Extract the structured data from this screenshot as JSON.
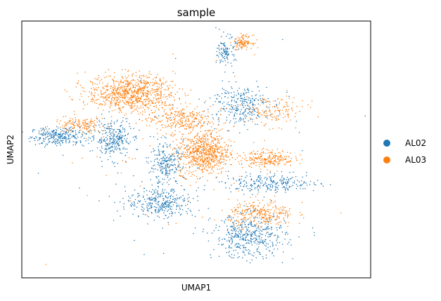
{
  "chart_data": {
    "type": "scatter",
    "title": "sample",
    "xlabel": "UMAP1",
    "ylabel": "UMAP2",
    "x_ticks": false,
    "y_ticks": false,
    "grid": false,
    "legend_position": "right",
    "series": [
      {
        "name": "AL02",
        "color": "#1f77b4",
        "approx_point_count": 10500,
        "regions": [
          {
            "name": "left-arm",
            "center": [
              -8.5,
              1.2
            ],
            "spread": [
              1.6,
              0.55
            ],
            "weight": 0.12
          },
          {
            "name": "left-center",
            "center": [
              -5.0,
              1.0
            ],
            "spread": [
              1.0,
              1.1
            ],
            "weight": 0.12
          },
          {
            "name": "central-bridge",
            "center": [
              -1.5,
              -0.9
            ],
            "spread": [
              0.9,
              1.2
            ],
            "weight": 0.1
          },
          {
            "name": "lower-center",
            "center": [
              -1.8,
              -3.6
            ],
            "spread": [
              1.9,
              0.9
            ],
            "weight": 0.14
          },
          {
            "name": "bottom-right-cluster",
            "center": [
              4.0,
              -6.0
            ],
            "spread": [
              2.0,
              1.3
            ],
            "weight": 0.2
          },
          {
            "name": "right-band",
            "center": [
              5.5,
              -2.2
            ],
            "spread": [
              2.6,
              0.55
            ],
            "weight": 0.11
          },
          {
            "name": "upper-right",
            "center": [
              3.3,
              3.5
            ],
            "spread": [
              1.6,
              1.2
            ],
            "weight": 0.12
          },
          {
            "name": "top-spike",
            "center": [
              2.5,
              7.3
            ],
            "spread": [
              0.5,
              0.9
            ],
            "weight": 0.05
          },
          {
            "name": "scattered",
            "center": [
              0.0,
              0.0
            ],
            "spread": [
              7.0,
              5.0
            ],
            "weight": 0.04
          }
        ]
      },
      {
        "name": "AL03",
        "color": "#ff7f0e",
        "approx_point_count": 12500,
        "regions": [
          {
            "name": "upper-left-cluster",
            "center": [
              -3.8,
              4.3
            ],
            "spread": [
              2.4,
              1.1
            ],
            "weight": 0.3
          },
          {
            "name": "center-cluster",
            "center": [
              1.0,
              0.0
            ],
            "spread": [
              1.4,
              1.3
            ],
            "weight": 0.25
          },
          {
            "name": "center-upper",
            "center": [
              -0.6,
              2.4
            ],
            "spread": [
              1.8,
              0.8
            ],
            "weight": 0.1
          },
          {
            "name": "right-middle",
            "center": [
              5.3,
              -0.4
            ],
            "spread": [
              1.4,
              0.5
            ],
            "weight": 0.08
          },
          {
            "name": "bottom-right-cluster",
            "center": [
              4.8,
              -4.4
            ],
            "spread": [
              1.8,
              0.8
            ],
            "weight": 0.1
          },
          {
            "name": "left-arm",
            "center": [
              -7.2,
              2.0
            ],
            "spread": [
              1.4,
              0.5
            ],
            "weight": 0.05
          },
          {
            "name": "top-right-spike",
            "center": [
              3.6,
              8.0
            ],
            "spread": [
              0.5,
              0.4
            ],
            "weight": 0.04
          },
          {
            "name": "upper-right-spots",
            "center": [
              5.6,
              3.0
            ],
            "spread": [
              1.8,
              0.9
            ],
            "weight": 0.05
          },
          {
            "name": "scattered",
            "center": [
              0.0,
              0.0
            ],
            "spread": [
              7.0,
              5.0
            ],
            "weight": 0.03
          }
        ]
      }
    ],
    "xlim": [
      -11,
      12
    ],
    "ylim": [
      -9,
      9.5
    ]
  }
}
